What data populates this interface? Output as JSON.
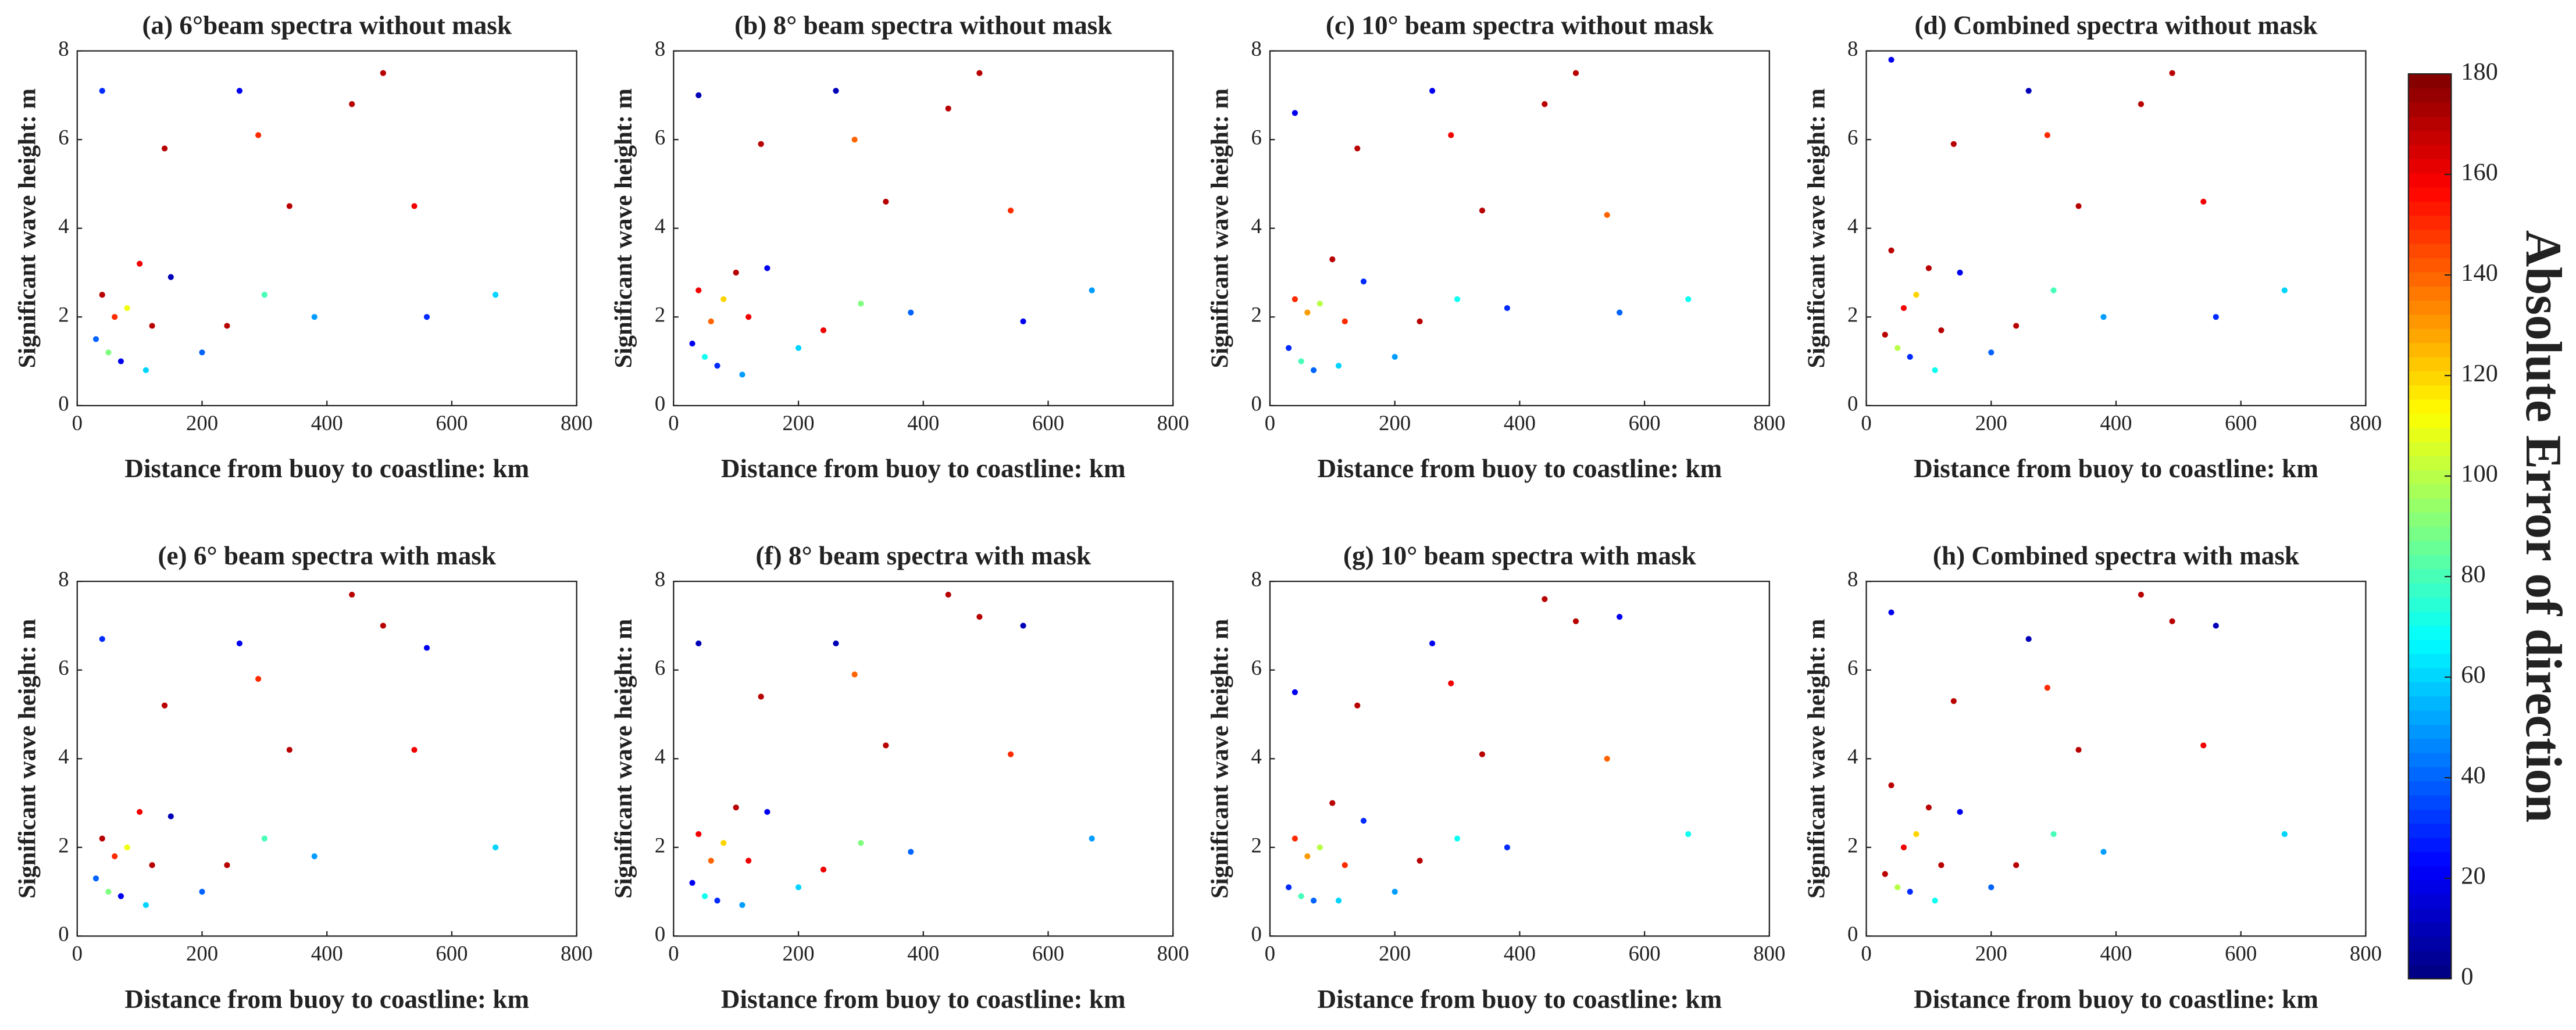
{
  "chart_data": [
    {
      "type": "scatter",
      "title": "(a) 6°beam spectra without mask",
      "xlabel": "Distance from buoy to coastline: km",
      "ylabel": "Significant wave height: m",
      "xlim": [
        0,
        800
      ],
      "xticks": [
        0,
        200,
        400,
        600,
        800
      ],
      "ylim": [
        0,
        8
      ],
      "yticks": [
        0,
        2,
        4,
        6,
        8
      ],
      "colormap": "jet",
      "x": [
        30,
        40,
        40,
        50,
        60,
        70,
        80,
        100,
        110,
        120,
        140,
        150,
        200,
        240,
        260,
        290,
        300,
        340,
        380,
        440,
        490,
        540,
        560,
        670
      ],
      "y": [
        1.5,
        7.1,
        2.5,
        1.2,
        2.0,
        1.0,
        2.2,
        3.2,
        0.8,
        1.8,
        5.8,
        2.9,
        1.2,
        1.8,
        7.1,
        6.1,
        2.5,
        4.5,
        2.0,
        6.8,
        7.5,
        4.5,
        2.0,
        2.5
      ],
      "c": [
        40,
        30,
        170,
        90,
        150,
        20,
        110,
        160,
        60,
        170,
        170,
        10,
        40,
        170,
        20,
        150,
        80,
        170,
        50,
        170,
        170,
        160,
        30,
        60
      ]
    },
    {
      "type": "scatter",
      "title": "(b) 8° beam spectra without mask",
      "xlabel": "Distance from buoy to coastline: km",
      "ylabel": "Significant wave height: m",
      "xlim": [
        0,
        800
      ],
      "xticks": [
        0,
        200,
        400,
        600,
        800
      ],
      "ylim": [
        0,
        8
      ],
      "yticks": [
        0,
        2,
        4,
        6,
        8
      ],
      "colormap": "jet",
      "x": [
        30,
        40,
        40,
        50,
        60,
        70,
        80,
        100,
        110,
        120,
        140,
        150,
        200,
        240,
        260,
        290,
        300,
        340,
        380,
        440,
        490,
        540,
        560,
        670
      ],
      "y": [
        1.4,
        7.0,
        2.6,
        1.1,
        1.9,
        0.9,
        2.4,
        3.0,
        0.7,
        2.0,
        5.9,
        3.1,
        1.3,
        1.7,
        7.1,
        6.0,
        2.3,
        4.6,
        2.1,
        6.7,
        7.5,
        4.4,
        1.9,
        2.6
      ],
      "c": [
        20,
        10,
        160,
        70,
        140,
        30,
        120,
        170,
        50,
        160,
        170,
        20,
        60,
        160,
        10,
        140,
        90,
        170,
        40,
        170,
        170,
        150,
        20,
        50
      ]
    },
    {
      "type": "scatter",
      "title": "(c) 10° beam spectra without mask",
      "xlabel": "Distance from buoy to coastline: km",
      "ylabel": "Significant wave height: m",
      "xlim": [
        0,
        800
      ],
      "xticks": [
        0,
        200,
        400,
        600,
        800
      ],
      "ylim": [
        0,
        8
      ],
      "yticks": [
        0,
        2,
        4,
        6,
        8
      ],
      "colormap": "jet",
      "x": [
        30,
        40,
        40,
        50,
        60,
        70,
        80,
        100,
        110,
        120,
        140,
        150,
        200,
        240,
        260,
        290,
        300,
        340,
        380,
        440,
        490,
        540,
        560,
        670
      ],
      "y": [
        1.3,
        6.6,
        2.4,
        1.0,
        2.1,
        0.8,
        2.3,
        3.3,
        0.9,
        1.9,
        5.8,
        2.8,
        1.1,
        1.9,
        7.1,
        6.1,
        2.4,
        4.4,
        2.2,
        6.8,
        7.5,
        4.3,
        2.1,
        2.4
      ],
      "c": [
        30,
        20,
        150,
        80,
        130,
        40,
        100,
        170,
        60,
        150,
        170,
        30,
        50,
        170,
        20,
        160,
        70,
        170,
        30,
        170,
        170,
        140,
        40,
        70
      ]
    },
    {
      "type": "scatter",
      "title": "(d) Combined spectra without mask",
      "xlabel": "Distance from buoy to coastline: km",
      "ylabel": "Significant wave height: m",
      "xlim": [
        0,
        800
      ],
      "xticks": [
        0,
        200,
        400,
        600,
        800
      ],
      "ylim": [
        0,
        8
      ],
      "yticks": [
        0,
        2,
        4,
        6,
        8
      ],
      "colormap": "jet",
      "x": [
        30,
        40,
        40,
        50,
        60,
        70,
        80,
        100,
        110,
        120,
        140,
        150,
        200,
        240,
        260,
        290,
        300,
        340,
        380,
        440,
        490,
        540,
        560,
        670
      ],
      "y": [
        1.6,
        7.8,
        3.5,
        1.3,
        2.2,
        1.1,
        2.5,
        3.1,
        0.8,
        1.7,
        5.9,
        3.0,
        1.2,
        1.8,
        7.1,
        6.1,
        2.6,
        4.5,
        2.0,
        6.8,
        7.5,
        4.6,
        2.0,
        2.6
      ],
      "c": [
        170,
        20,
        170,
        100,
        160,
        30,
        120,
        170,
        70,
        170,
        170,
        20,
        40,
        170,
        10,
        150,
        80,
        170,
        50,
        170,
        170,
        160,
        30,
        60
      ]
    },
    {
      "type": "scatter",
      "title": "(e) 6° beam spectra with mask",
      "xlabel": "Distance from buoy to coastline: km",
      "ylabel": "Significant wave height: m",
      "xlim": [
        0,
        800
      ],
      "xticks": [
        0,
        200,
        400,
        600,
        800
      ],
      "ylim": [
        0,
        8
      ],
      "yticks": [
        0,
        2,
        4,
        6,
        8
      ],
      "colormap": "jet",
      "x": [
        30,
        40,
        40,
        50,
        60,
        70,
        80,
        100,
        110,
        120,
        140,
        150,
        200,
        240,
        260,
        290,
        300,
        340,
        380,
        440,
        490,
        540,
        560,
        670
      ],
      "y": [
        1.3,
        6.7,
        2.2,
        1.0,
        1.8,
        0.9,
        2.0,
        2.8,
        0.7,
        1.6,
        5.2,
        2.7,
        1.0,
        1.6,
        6.6,
        5.8,
        2.2,
        4.2,
        1.8,
        7.7,
        7.0,
        4.2,
        6.5,
        2.0
      ],
      "c": [
        40,
        30,
        170,
        90,
        150,
        20,
        110,
        160,
        60,
        170,
        170,
        10,
        40,
        170,
        20,
        150,
        80,
        170,
        50,
        170,
        170,
        160,
        20,
        60
      ]
    },
    {
      "type": "scatter",
      "title": "(f) 8° beam spectra with mask",
      "xlabel": "Distance from buoy to coastline: km",
      "ylabel": "Significant wave height: m",
      "xlim": [
        0,
        800
      ],
      "xticks": [
        0,
        200,
        400,
        600,
        800
      ],
      "ylim": [
        0,
        8
      ],
      "yticks": [
        0,
        2,
        4,
        6,
        8
      ],
      "colormap": "jet",
      "x": [
        30,
        40,
        40,
        50,
        60,
        70,
        80,
        100,
        110,
        120,
        140,
        150,
        200,
        240,
        260,
        290,
        300,
        340,
        380,
        440,
        490,
        540,
        560,
        670
      ],
      "y": [
        1.2,
        6.6,
        2.3,
        0.9,
        1.7,
        0.8,
        2.1,
        2.9,
        0.7,
        1.7,
        5.4,
        2.8,
        1.1,
        1.5,
        6.6,
        5.9,
        2.1,
        4.3,
        1.9,
        7.7,
        7.2,
        4.1,
        7.0,
        2.2
      ],
      "c": [
        20,
        10,
        160,
        70,
        140,
        30,
        120,
        170,
        50,
        160,
        170,
        20,
        60,
        160,
        10,
        140,
        90,
        170,
        40,
        170,
        170,
        150,
        10,
        50
      ]
    },
    {
      "type": "scatter",
      "title": "(g) 10° beam spectra with mask",
      "xlabel": "Distance from buoy to coastline: km",
      "ylabel": "Significant wave height: m",
      "xlim": [
        0,
        800
      ],
      "xticks": [
        0,
        200,
        400,
        600,
        800
      ],
      "ylim": [
        0,
        8
      ],
      "yticks": [
        0,
        2,
        4,
        6,
        8
      ],
      "colormap": "jet",
      "x": [
        30,
        40,
        40,
        50,
        60,
        70,
        80,
        100,
        110,
        120,
        140,
        150,
        200,
        240,
        260,
        290,
        300,
        340,
        380,
        440,
        490,
        540,
        560,
        670
      ],
      "y": [
        1.1,
        5.5,
        2.2,
        0.9,
        1.8,
        0.8,
        2.0,
        3.0,
        0.8,
        1.6,
        5.2,
        2.6,
        1.0,
        1.7,
        6.6,
        5.7,
        2.2,
        4.1,
        2.0,
        7.6,
        7.1,
        4.0,
        7.2,
        2.3
      ],
      "c": [
        30,
        20,
        150,
        80,
        130,
        40,
        100,
        170,
        60,
        150,
        170,
        30,
        50,
        170,
        20,
        160,
        70,
        170,
        30,
        170,
        170,
        140,
        20,
        70
      ]
    },
    {
      "type": "scatter",
      "title": "(h) Combined spectra with mask",
      "xlabel": "Distance from buoy to coastline: km",
      "ylabel": "Significant wave height: m",
      "xlim": [
        0,
        800
      ],
      "xticks": [
        0,
        200,
        400,
        600,
        800
      ],
      "ylim": [
        0,
        8
      ],
      "yticks": [
        0,
        2,
        4,
        6,
        8
      ],
      "colormap": "jet",
      "x": [
        30,
        40,
        40,
        50,
        60,
        70,
        80,
        100,
        110,
        120,
        140,
        150,
        200,
        240,
        260,
        290,
        300,
        340,
        380,
        440,
        490,
        540,
        560,
        670
      ],
      "y": [
        1.4,
        7.3,
        3.4,
        1.1,
        2.0,
        1.0,
        2.3,
        2.9,
        0.8,
        1.6,
        5.3,
        2.8,
        1.1,
        1.6,
        6.7,
        5.6,
        2.3,
        4.2,
        1.9,
        7.7,
        7.1,
        4.3,
        7.0,
        2.3
      ],
      "c": [
        170,
        20,
        170,
        100,
        160,
        30,
        120,
        170,
        70,
        170,
        170,
        20,
        40,
        170,
        10,
        150,
        80,
        170,
        50,
        170,
        170,
        160,
        10,
        60
      ]
    },
    {
      "type": "colorbar",
      "label": "Absolute Error of direction",
      "colormap": "jet",
      "lim": [
        0,
        180
      ],
      "ticks": [
        0,
        20,
        40,
        60,
        80,
        100,
        120,
        140,
        160,
        180
      ]
    }
  ]
}
